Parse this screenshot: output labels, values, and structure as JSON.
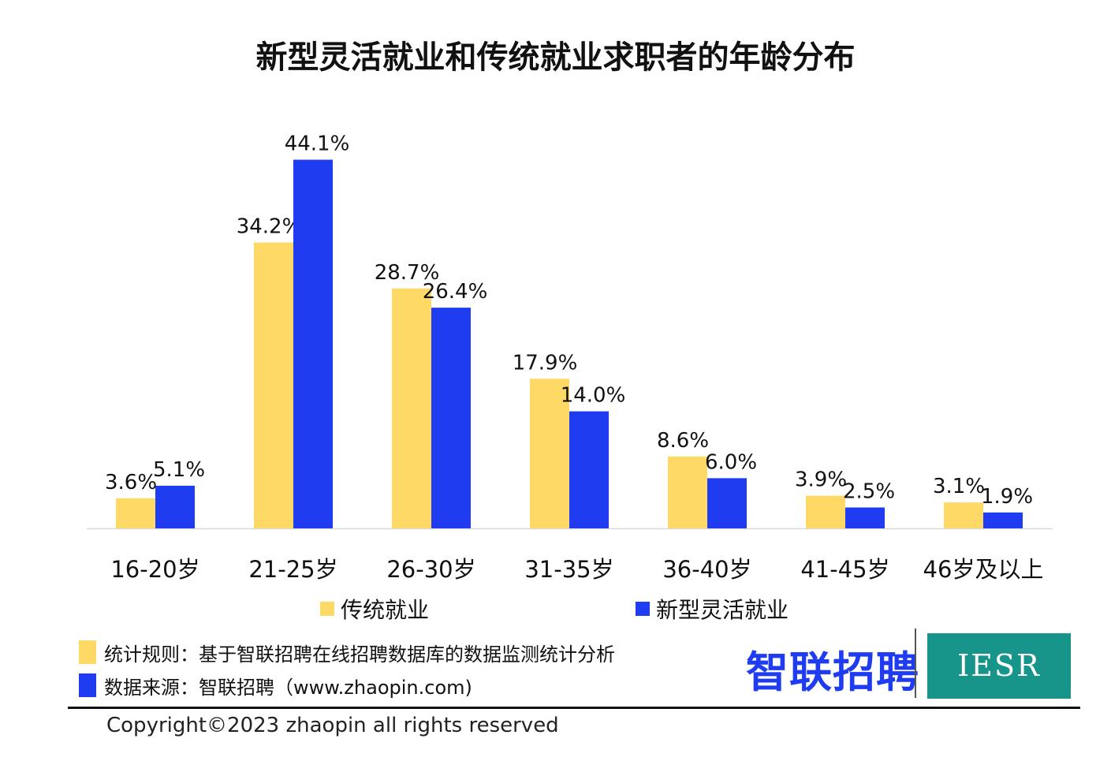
{
  "chart_data": {
    "type": "bar",
    "title": "新型灵活就业和传统就业求职者的年龄分布",
    "categories": [
      "16-20岁",
      "21-25岁",
      "26-30岁",
      "31-35岁",
      "36-40岁",
      "41-45岁",
      "46岁及以上"
    ],
    "series": [
      {
        "name": "传统就业",
        "color": "#FFD966",
        "values": [
          3.6,
          34.2,
          28.7,
          17.9,
          8.6,
          3.9,
          3.1
        ],
        "labels": [
          "3.6%",
          "34.2%",
          "28.7%",
          "17.9%",
          "8.6%",
          "3.9%",
          "3.1%"
        ]
      },
      {
        "name": "新型灵活就业",
        "color": "#1F3CF0",
        "values": [
          5.1,
          44.1,
          26.4,
          14.0,
          6.0,
          2.5,
          1.9
        ],
        "labels": [
          "5.1%",
          "44.1%",
          "26.4%",
          "14.0%",
          "6.0%",
          "2.5%",
          "1.9%"
        ]
      }
    ],
    "ylim": [
      0,
      50
    ],
    "grid": false,
    "legend_position": "bottom"
  },
  "legend": {
    "traditional": "传统就业",
    "flexible": "新型灵活就业"
  },
  "notes": {
    "rule": "统计规则：基于智联招聘在线招聘数据库的数据监测统计分析",
    "source": "数据来源：智联招聘（www.zhaopin.com)"
  },
  "logos": {
    "zhilian": "智联招聘",
    "iesr": "IESR"
  },
  "copyright": "Copyright©2023 zhaopin all rights reserved",
  "colors": {
    "traditional": "#FFD966",
    "flexible": "#1F3CF0",
    "iesr_bg": "#17958A"
  }
}
